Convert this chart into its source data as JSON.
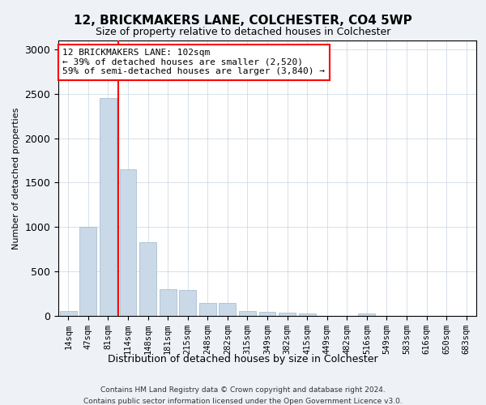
{
  "title": "12, BRICKMAKERS LANE, COLCHESTER, CO4 5WP",
  "subtitle": "Size of property relative to detached houses in Colchester",
  "xlabel": "Distribution of detached houses by size in Colchester",
  "ylabel": "Number of detached properties",
  "footer_line1": "Contains HM Land Registry data © Crown copyright and database right 2024.",
  "footer_line2": "Contains public sector information licensed under the Open Government Licence v3.0.",
  "bar_labels": [
    "14sqm",
    "47sqm",
    "81sqm",
    "114sqm",
    "148sqm",
    "181sqm",
    "215sqm",
    "248sqm",
    "282sqm",
    "315sqm",
    "349sqm",
    "382sqm",
    "415sqm",
    "449sqm",
    "482sqm",
    "516sqm",
    "549sqm",
    "583sqm",
    "616sqm",
    "650sqm",
    "683sqm"
  ],
  "bar_values": [
    55,
    1000,
    2450,
    1650,
    830,
    300,
    295,
    150,
    150,
    55,
    50,
    35,
    25,
    0,
    0,
    30,
    0,
    0,
    0,
    0,
    0
  ],
  "bar_color": "#c9d9e8",
  "bar_edge_color": "#a0b8cc",
  "vline_color": "red",
  "annotation_text": "12 BRICKMAKERS LANE: 102sqm\n← 39% of detached houses are smaller (2,520)\n59% of semi-detached houses are larger (3,840) →",
  "annotation_box_color": "white",
  "annotation_box_edgecolor": "red",
  "ylim": [
    0,
    3100
  ],
  "background_color": "#eef2f7",
  "plot_background": "white",
  "grid_color": "#c8d4e0"
}
